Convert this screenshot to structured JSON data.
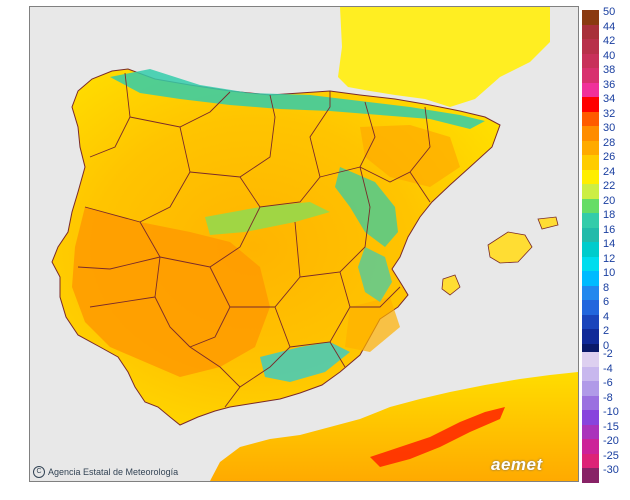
{
  "credit": {
    "symbol": "C",
    "text": "Agencia Estatal de Meteorología"
  },
  "logo": {
    "text": "aemet"
  },
  "legend": {
    "warm": [
      {
        "label": "50",
        "color": "#8a3a10"
      },
      {
        "label": "44",
        "color": "#a8303a"
      },
      {
        "label": "42",
        "color": "#b8304a"
      },
      {
        "label": "40",
        "color": "#c8305a"
      },
      {
        "label": "38",
        "color": "#d8306e"
      },
      {
        "label": "36",
        "color": "#f0309a"
      },
      {
        "label": "34",
        "color": "#ff0000"
      },
      {
        "label": "32",
        "color": "#ff5a00"
      },
      {
        "label": "30",
        "color": "#ff8c00"
      },
      {
        "label": "28",
        "color": "#ffaa00"
      },
      {
        "label": "26",
        "color": "#ffcc00"
      },
      {
        "label": "24",
        "color": "#ffee00"
      },
      {
        "label": "22",
        "color": "#ccee44"
      },
      {
        "label": "20",
        "color": "#66dd66"
      },
      {
        "label": "18",
        "color": "#33ccaa"
      },
      {
        "label": "16",
        "color": "#22bbaa"
      },
      {
        "label": "14",
        "color": "#00cccc"
      },
      {
        "label": "12",
        "color": "#00ddee"
      },
      {
        "label": "10",
        "color": "#00bbff"
      },
      {
        "label": "8",
        "color": "#2288ee"
      },
      {
        "label": "6",
        "color": "#2266dd"
      },
      {
        "label": "4",
        "color": "#1a44bb"
      },
      {
        "label": "2",
        "color": "#102a99"
      },
      {
        "label": "0",
        "color": "#0a1a6a"
      }
    ],
    "cold": [
      {
        "label": "-2",
        "color": "#ddd0f0"
      },
      {
        "label": "-4",
        "color": "#c8b8ee"
      },
      {
        "label": "-6",
        "color": "#b09ae8"
      },
      {
        "label": "-8",
        "color": "#9a70e0"
      },
      {
        "label": "-10",
        "color": "#8844dd"
      },
      {
        "label": "-15",
        "color": "#aa33bb"
      },
      {
        "label": "-20",
        "color": "#cc2299"
      },
      {
        "label": "-25",
        "color": "#dd2277"
      },
      {
        "label": "-30",
        "color": "#882266"
      }
    ]
  }
}
